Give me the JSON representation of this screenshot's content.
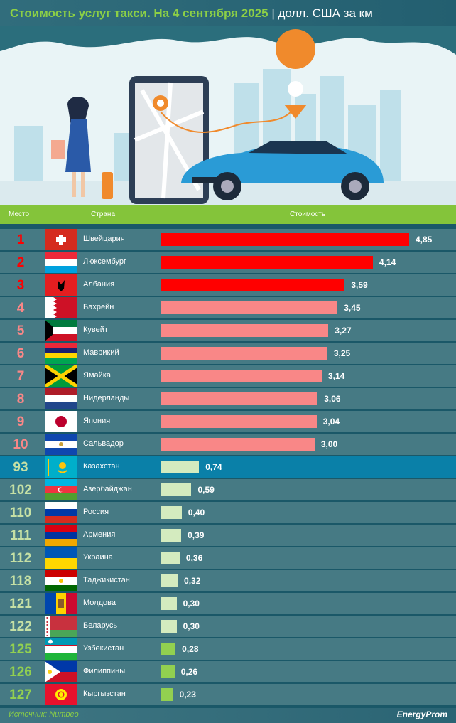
{
  "title": {
    "main": "Стоимость услуг такси. На 4 сентября 2025",
    "sep": " | ",
    "unit": "долл. США за км"
  },
  "header": {
    "rank": "Место",
    "country": "Страна",
    "cost": "Стоимость"
  },
  "footer": {
    "source": "Источник: Numbeo",
    "logo": "EnergyProm"
  },
  "colors": {
    "top3": "#ff0000",
    "top10": "#f98787",
    "mid": "#d4ebbf",
    "low": "#92d050",
    "highlight_row": "#0a80a8"
  },
  "chart_data": {
    "type": "bar",
    "orientation": "horizontal",
    "title": "Стоимость услуг такси. На 4 сентября 2025",
    "unit": "долл. США за км",
    "xlim": [
      0,
      4.85
    ],
    "rows": [
      {
        "rank": "1",
        "country": "Швейцария",
        "value": 4.85,
        "label": "4,85",
        "flag": "ch",
        "tier": "top3"
      },
      {
        "rank": "2",
        "country": "Люксембург",
        "value": 4.14,
        "label": "4,14",
        "flag": "lu",
        "tier": "top3"
      },
      {
        "rank": "3",
        "country": "Албания",
        "value": 3.59,
        "label": "3,59",
        "flag": "al",
        "tier": "top3"
      },
      {
        "rank": "4",
        "country": "Бахрейн",
        "value": 3.45,
        "label": "3,45",
        "flag": "bh",
        "tier": "top10"
      },
      {
        "rank": "5",
        "country": "Кувейт",
        "value": 3.27,
        "label": "3,27",
        "flag": "kw",
        "tier": "top10"
      },
      {
        "rank": "6",
        "country": "Маврикий",
        "value": 3.25,
        "label": "3,25",
        "flag": "mu",
        "tier": "top10"
      },
      {
        "rank": "7",
        "country": "Ямайка",
        "value": 3.14,
        "label": "3,14",
        "flag": "jm",
        "tier": "top10"
      },
      {
        "rank": "8",
        "country": "Нидерланды",
        "value": 3.06,
        "label": "3,06",
        "flag": "nl",
        "tier": "top10"
      },
      {
        "rank": "9",
        "country": "Япония",
        "value": 3.04,
        "label": "3,04",
        "flag": "jp",
        "tier": "top10"
      },
      {
        "rank": "10",
        "country": "Сальвадор",
        "value": 3.0,
        "label": "3,00",
        "flag": "sv",
        "tier": "top10"
      },
      {
        "rank": "93",
        "country": "Казахстан",
        "value": 0.74,
        "label": "0,74",
        "flag": "kz",
        "tier": "mid",
        "highlight": true
      },
      {
        "rank": "102",
        "country": "Азербайджан",
        "value": 0.59,
        "label": "0,59",
        "flag": "az",
        "tier": "mid"
      },
      {
        "rank": "110",
        "country": "Россия",
        "value": 0.4,
        "label": "0,40",
        "flag": "ru",
        "tier": "mid"
      },
      {
        "rank": "111",
        "country": "Армения",
        "value": 0.39,
        "label": "0,39",
        "flag": "am",
        "tier": "mid"
      },
      {
        "rank": "112",
        "country": "Украина",
        "value": 0.36,
        "label": "0,36",
        "flag": "ua",
        "tier": "mid"
      },
      {
        "rank": "118",
        "country": "Таджикистан",
        "value": 0.32,
        "label": "0,32",
        "flag": "tj",
        "tier": "mid"
      },
      {
        "rank": "121",
        "country": "Молдова",
        "value": 0.3,
        "label": "0,30",
        "flag": "md",
        "tier": "mid"
      },
      {
        "rank": "122",
        "country": "Беларусь",
        "value": 0.3,
        "label": "0,30",
        "flag": "by",
        "tier": "mid"
      },
      {
        "rank": "125",
        "country": "Узбекистан",
        "value": 0.28,
        "label": "0,28",
        "flag": "uz",
        "tier": "low"
      },
      {
        "rank": "126",
        "country": "Филиппины",
        "value": 0.26,
        "label": "0,26",
        "flag": "ph",
        "tier": "low"
      },
      {
        "rank": "127",
        "country": "Кыргызстан",
        "value": 0.23,
        "label": "0,23",
        "flag": "kg",
        "tier": "low"
      }
    ]
  }
}
